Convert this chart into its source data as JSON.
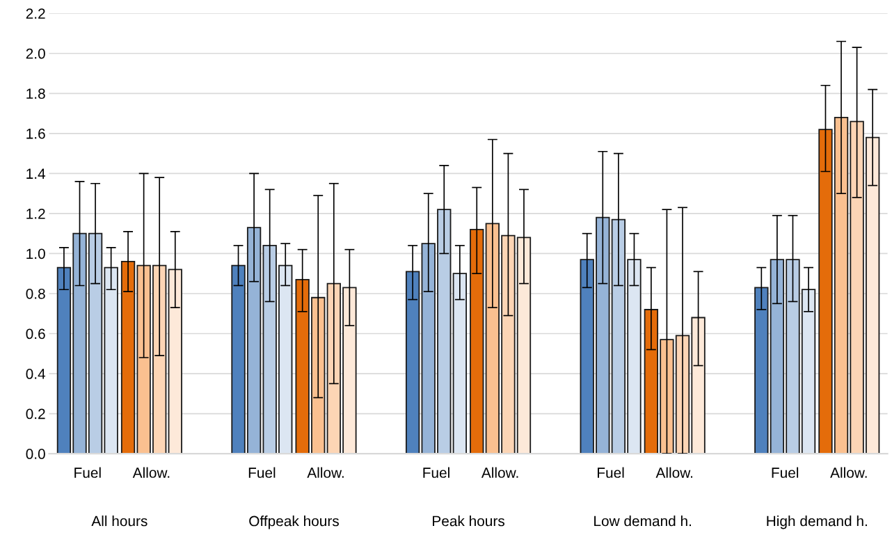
{
  "chart_data": {
    "type": "bar",
    "categories": [
      "Fuel",
      "Allow.",
      "Fuel",
      "Allow.",
      "Fuel",
      "Allow.",
      "Fuel",
      "Allow.",
      "Fuel",
      "Allow."
    ],
    "annotations": [
      "All hours",
      "Offpeak hours",
      "Peak hours",
      "Low demand h.",
      "High demand h."
    ],
    "series": [
      {
        "colors": [
          "#4f81bd",
          "#e46c0a",
          "#4f81bd",
          "#e46c0a",
          "#4f81bd",
          "#e46c0a",
          "#4f81bd",
          "#e46c0a",
          "#4f81bd",
          "#e46c0a"
        ],
        "values": [
          0.93,
          0.96,
          0.94,
          0.87,
          0.91,
          1.12,
          0.97,
          0.72,
          0.83,
          1.62
        ],
        "errors": [
          [
            0.82,
            1.03
          ],
          [
            0.81,
            1.11
          ],
          [
            0.84,
            1.04
          ],
          [
            0.71,
            1.02
          ],
          [
            0.77,
            1.04
          ],
          [
            0.9,
            1.33
          ],
          [
            0.83,
            1.1
          ],
          [
            0.52,
            0.93
          ],
          [
            0.72,
            0.93
          ],
          [
            1.41,
            1.84
          ]
        ]
      },
      {
        "colors": [
          "#95b3d7",
          "#fac090",
          "#95b3d7",
          "#fac090",
          "#95b3d7",
          "#fac090",
          "#95b3d7",
          "#fac090",
          "#95b3d7",
          "#fac090"
        ],
        "values": [
          1.1,
          0.94,
          1.13,
          0.78,
          1.05,
          1.15,
          1.18,
          0.57,
          0.97,
          1.68
        ],
        "errors": [
          [
            0.84,
            1.36
          ],
          [
            0.48,
            1.4
          ],
          [
            0.86,
            1.4
          ],
          [
            0.28,
            1.29
          ],
          [
            0.81,
            1.3
          ],
          [
            0.73,
            1.57
          ],
          [
            0.85,
            1.51
          ],
          [
            0.0,
            1.22
          ],
          [
            0.75,
            1.19
          ],
          [
            1.3,
            2.06
          ]
        ]
      },
      {
        "colors": [
          "#b9cde5",
          "#fcd5b5",
          "#b9cde5",
          "#fcd5b5",
          "#b9cde5",
          "#fcd5b5",
          "#b9cde5",
          "#fcd5b5",
          "#b9cde5",
          "#fcd5b5"
        ],
        "values": [
          1.1,
          0.94,
          1.04,
          0.85,
          1.22,
          1.09,
          1.17,
          0.59,
          0.97,
          1.66
        ],
        "errors": [
          [
            0.85,
            1.35
          ],
          [
            0.49,
            1.38
          ],
          [
            0.76,
            1.32
          ],
          [
            0.35,
            1.35
          ],
          [
            1.0,
            1.44
          ],
          [
            0.69,
            1.5
          ],
          [
            0.84,
            1.5
          ],
          [
            0.0,
            1.23
          ],
          [
            0.76,
            1.19
          ],
          [
            1.28,
            2.03
          ]
        ]
      },
      {
        "colors": [
          "#dce6f2",
          "#fde9d9",
          "#dce6f2",
          "#fde9d9",
          "#dce6f2",
          "#fde9d9",
          "#dce6f2",
          "#fde9d9",
          "#dce6f2",
          "#fde9d9"
        ],
        "values": [
          0.93,
          0.92,
          0.94,
          0.83,
          0.9,
          1.08,
          0.97,
          0.68,
          0.82,
          1.58
        ],
        "errors": [
          [
            0.82,
            1.03
          ],
          [
            0.73,
            1.11
          ],
          [
            0.84,
            1.05
          ],
          [
            0.64,
            1.02
          ],
          [
            0.77,
            1.04
          ],
          [
            0.85,
            1.32
          ],
          [
            0.84,
            1.1
          ],
          [
            0.44,
            0.91
          ],
          [
            0.71,
            0.93
          ],
          [
            1.34,
            1.82
          ]
        ]
      }
    ],
    "ylim": [
      0,
      2.2
    ],
    "yticks": [
      {
        "value": 0,
        "label": "0.0"
      },
      {
        "value": 0.2,
        "label": "0.2"
      },
      {
        "value": 0.4,
        "label": "0.4"
      },
      {
        "value": 0.6,
        "label": "0.6"
      },
      {
        "value": 0.8,
        "label": "0.8"
      },
      {
        "value": 1.0,
        "label": "1.0"
      },
      {
        "value": 1.2,
        "label": "1.2"
      },
      {
        "value": 1.4,
        "label": "1.4"
      },
      {
        "value": 1.6,
        "label": "1.6"
      },
      {
        "value": 1.8,
        "label": "1.8"
      },
      {
        "value": 2.0,
        "label": "2.0"
      },
      {
        "value": 2.2,
        "label": "2.2"
      }
    ],
    "grid": "y"
  }
}
